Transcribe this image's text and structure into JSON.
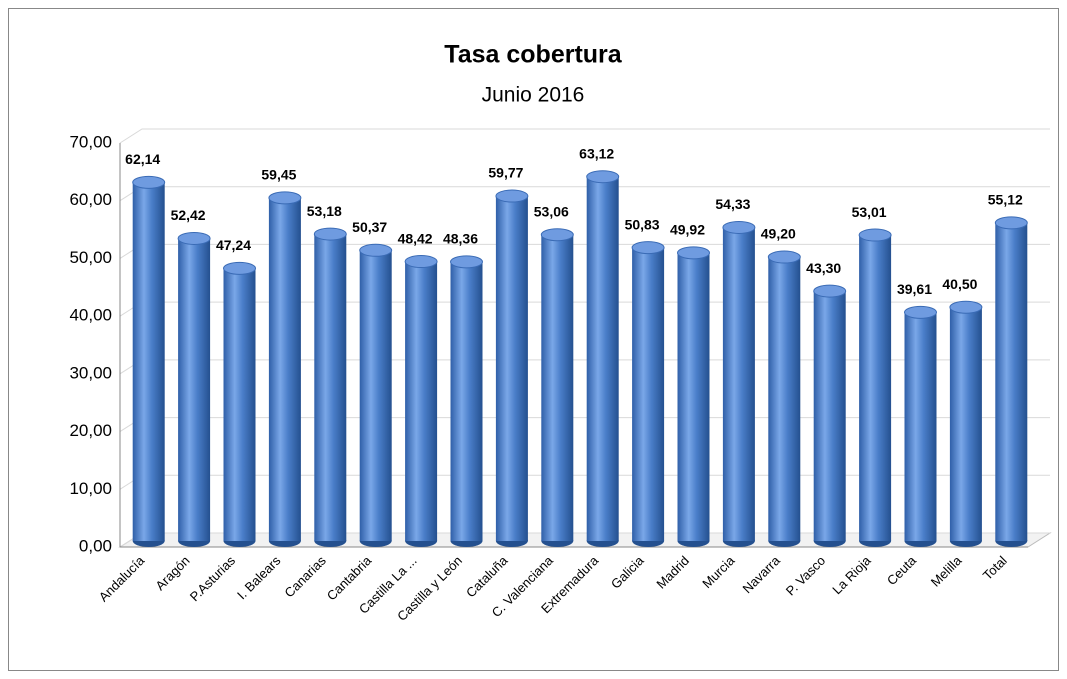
{
  "chart_data": {
    "type": "bar",
    "title": "Tasa cobertura",
    "subtitle": "Junio 2016",
    "categories": [
      "Andalucía",
      "Aragón",
      "P.Asturias",
      "I. Balears",
      "Canarias",
      "Cantabria",
      "Castilla La ...",
      "Castilla y León",
      "Cataluña",
      "C. Valenciana",
      "Extremadura",
      "Galicia",
      "Madrid",
      "Murcia",
      "Navarra",
      "P. Vasco",
      "La Rioja",
      "Ceuta",
      "Melilla",
      "Total"
    ],
    "values": [
      62.14,
      52.42,
      47.24,
      59.45,
      53.18,
      50.37,
      48.42,
      48.36,
      59.77,
      53.06,
      63.12,
      50.83,
      49.92,
      54.33,
      49.2,
      43.3,
      53.01,
      39.61,
      40.5,
      55.12
    ],
    "value_labels": [
      "62,14",
      "52,42",
      "47,24",
      "59,45",
      "53,18",
      "50,37",
      "48,42",
      "48,36",
      "59,77",
      "53,06",
      "63,12",
      "50,83",
      "49,92",
      "54,33",
      "49,20",
      "43,30",
      "53,01",
      "39,61",
      "40,50",
      "55,12"
    ],
    "color": "#4a7ec9",
    "ylim": [
      0,
      70
    ],
    "yticks": [
      {
        "value": 0,
        "label": "0,00"
      },
      {
        "value": 10,
        "label": "10,00"
      },
      {
        "value": 20,
        "label": "20,00"
      },
      {
        "value": 30,
        "label": "30,00"
      },
      {
        "value": 40,
        "label": "40,00"
      },
      {
        "value": 50,
        "label": "50,00"
      },
      {
        "value": 60,
        "label": "60,00"
      },
      {
        "value": 70,
        "label": "70,00"
      }
    ],
    "grid": true
  }
}
